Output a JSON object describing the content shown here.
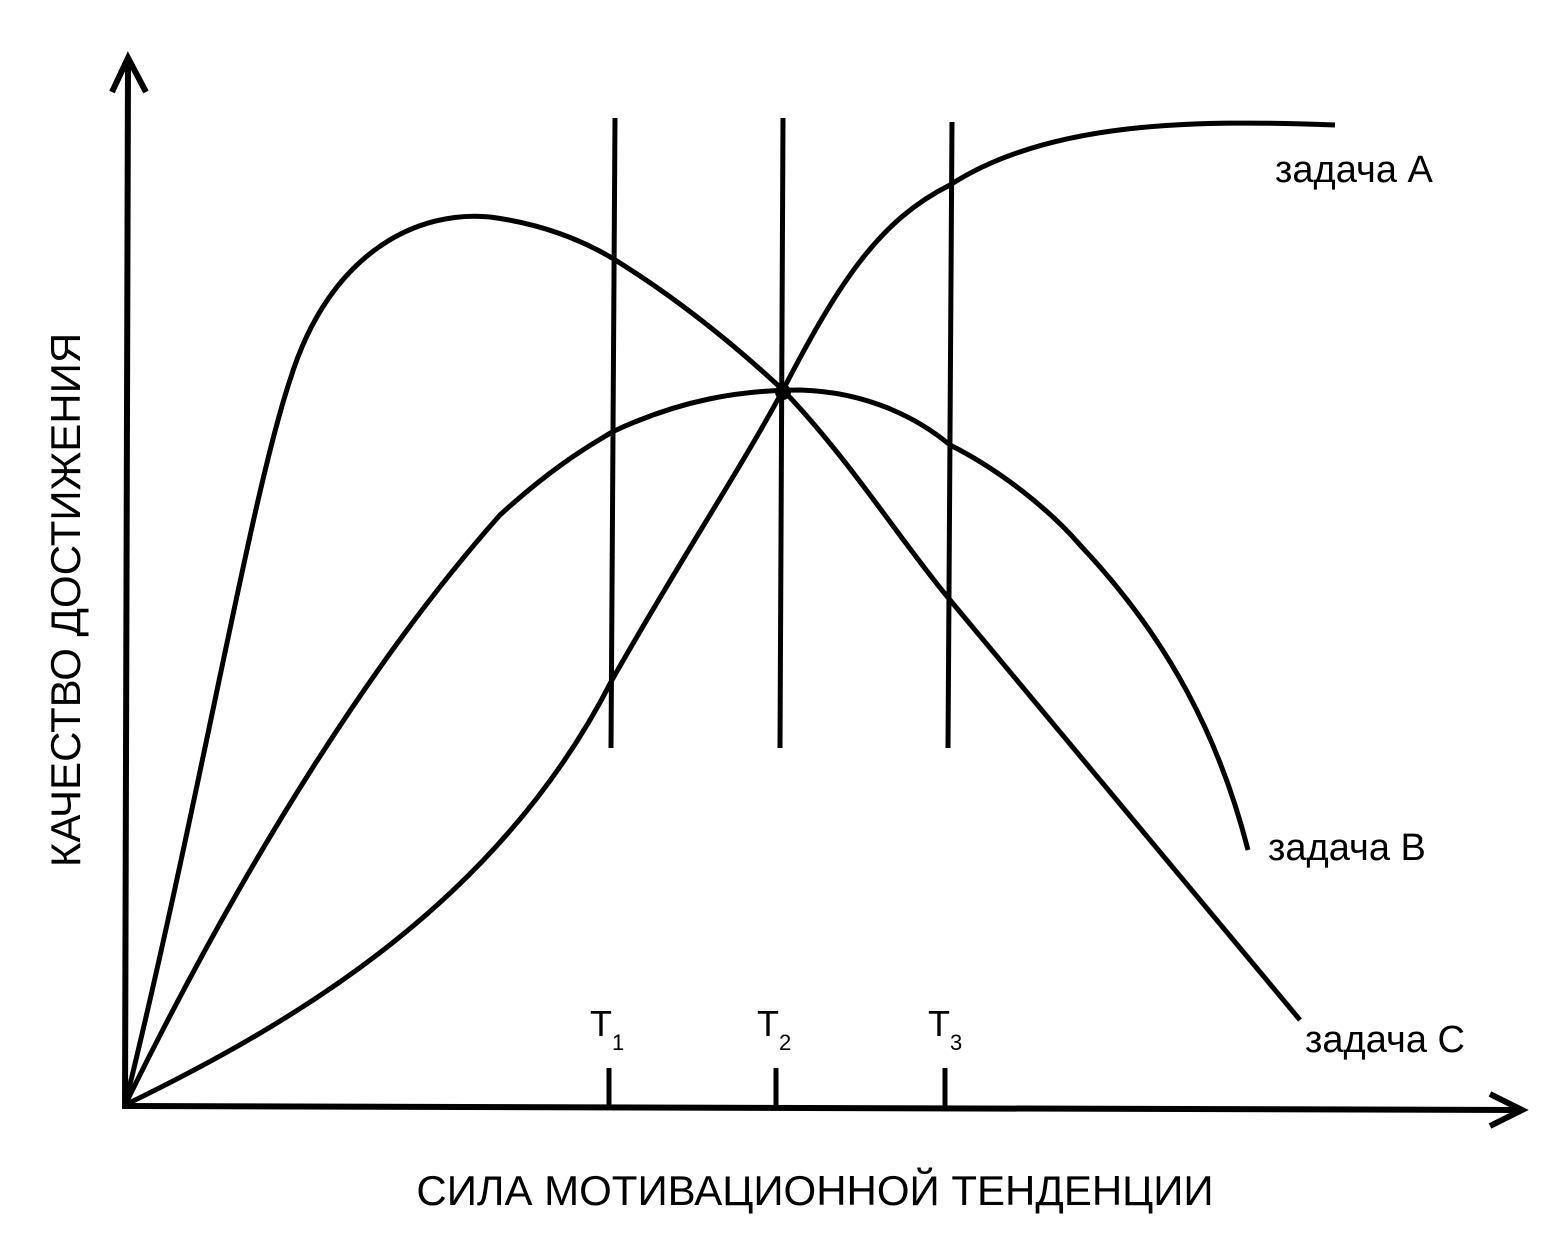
{
  "axes": {
    "y_label": "КАЧЕСТВО ДОСТИЖЕНИЯ",
    "x_label": "СИЛА МОТИВАЦИОННОЙ ТЕНДЕНЦИИ"
  },
  "curves": [
    {
      "label": "задача А"
    },
    {
      "label": "задача В"
    },
    {
      "label": "задача С"
    }
  ],
  "markers": [
    {
      "label": "T",
      "subscript": "1"
    },
    {
      "label": "T",
      "subscript": "2"
    },
    {
      "label": "T",
      "subscript": "3"
    }
  ]
}
